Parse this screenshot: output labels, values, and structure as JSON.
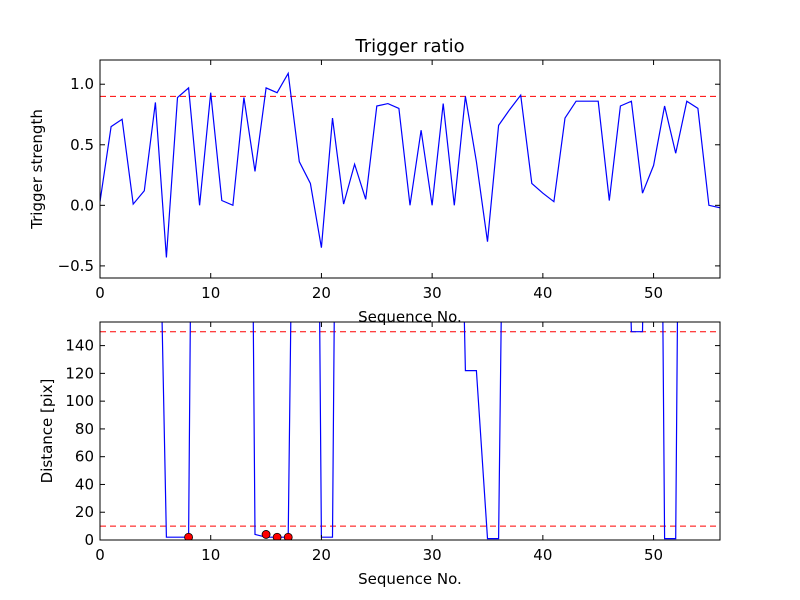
{
  "chart_data": [
    {
      "type": "line",
      "title": "Trigger ratio",
      "xlabel": "Sequence No.",
      "ylabel": "Trigger strength",
      "xlim": [
        0,
        56
      ],
      "ylim": [
        -0.6,
        1.2
      ],
      "xticks": [
        0,
        10,
        20,
        30,
        40,
        50
      ],
      "xtick_labels": [
        "0",
        "10",
        "20",
        "30",
        "40",
        "50"
      ],
      "yticks": [
        -0.5,
        0.0,
        0.5,
        1.0
      ],
      "ytick_labels": [
        "−0.5",
        "0.0",
        "0.5",
        "1.0"
      ],
      "grid": false,
      "line_color": "#0000ff",
      "threshold_color": "#ff0000",
      "thresholds": [
        0.9
      ],
      "x": [
        0,
        1,
        2,
        3,
        4,
        5,
        6,
        7,
        8,
        9,
        10,
        11,
        12,
        13,
        14,
        15,
        16,
        17,
        18,
        19,
        20,
        21,
        22,
        23,
        24,
        25,
        26,
        27,
        28,
        29,
        30,
        31,
        32,
        33,
        34,
        35,
        36,
        37,
        38,
        39,
        40,
        41,
        42,
        43,
        44,
        45,
        46,
        47,
        48,
        49,
        50,
        51,
        52,
        53,
        54,
        55,
        56
      ],
      "y": [
        0.03,
        0.65,
        0.71,
        0.01,
        0.12,
        0.85,
        -0.43,
        0.89,
        0.97,
        0.0,
        0.93,
        0.04,
        0.0,
        0.89,
        0.28,
        0.97,
        0.93,
        1.09,
        0.36,
        0.18,
        -0.35,
        0.72,
        0.01,
        0.34,
        0.05,
        0.82,
        0.84,
        0.8,
        0.0,
        0.62,
        0.0,
        0.84,
        0.0,
        0.9,
        0.36,
        -0.3,
        0.66,
        0.79,
        0.91,
        0.18,
        0.1,
        0.03,
        0.72,
        0.86,
        0.86,
        0.86,
        0.04,
        0.82,
        0.86,
        0.1,
        0.33,
        0.82,
        0.43,
        0.86,
        0.8,
        0.0,
        -0.02
      ]
    },
    {
      "type": "line",
      "title": "",
      "xlabel": "Sequence No.",
      "ylabel": "Distance [pix]",
      "xlim": [
        0,
        56
      ],
      "ylim": [
        0,
        157
      ],
      "xticks": [
        0,
        10,
        20,
        30,
        40,
        50
      ],
      "xtick_labels": [
        "0",
        "10",
        "20",
        "30",
        "40",
        "50"
      ],
      "yticks": [
        0,
        20,
        40,
        60,
        80,
        100,
        120,
        140
      ],
      "ytick_labels": [
        "0",
        "20",
        "40",
        "60",
        "80",
        "100",
        "120",
        "140"
      ],
      "grid": false,
      "line_color": "#0000ff",
      "threshold_color": "#ff0000",
      "marker_color": "#ff0000",
      "thresholds": [
        10,
        150
      ],
      "segments": [
        [
          [
            5.5,
            200
          ],
          [
            6,
            2
          ],
          [
            8,
            2
          ],
          [
            8.2,
            200
          ]
        ],
        [
          [
            13.8,
            200
          ],
          [
            14,
            4
          ],
          [
            15,
            2
          ],
          [
            17,
            2
          ],
          [
            17.3,
            200
          ]
        ],
        [
          [
            19.8,
            200
          ],
          [
            20,
            2
          ],
          [
            21,
            2
          ],
          [
            21.2,
            200
          ]
        ],
        [
          [
            32.8,
            200
          ],
          [
            33,
            122
          ],
          [
            34,
            122
          ],
          [
            35,
            1
          ],
          [
            36,
            1
          ],
          [
            36.3,
            200
          ]
        ],
        [
          [
            47.8,
            200
          ],
          [
            48,
            150
          ],
          [
            49,
            150
          ],
          [
            49.1,
            200
          ]
        ],
        [
          [
            50.8,
            200
          ],
          [
            51,
            1
          ],
          [
            52,
            1
          ],
          [
            52.2,
            200
          ]
        ]
      ],
      "markers": {
        "x": [
          8,
          15,
          16,
          17
        ],
        "y": [
          2,
          4,
          2,
          2
        ]
      }
    }
  ]
}
